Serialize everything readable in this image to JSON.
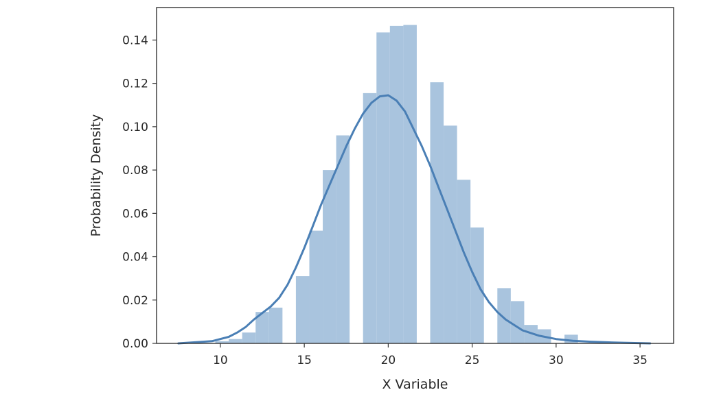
{
  "chart_data": {
    "type": "bar",
    "xlabel": "X Variable",
    "ylabel": "Probability Density",
    "xlim": [
      6.2,
      37.0
    ],
    "ylim": [
      0,
      0.155
    ],
    "xticks": [
      10,
      15,
      20,
      25,
      30,
      35
    ],
    "yticks": [
      0.0,
      0.02,
      0.04,
      0.06,
      0.08,
      0.1,
      0.12,
      0.14
    ],
    "xtick_labels": [
      "10",
      "15",
      "20",
      "25",
      "30",
      "35"
    ],
    "ytick_labels": [
      "0.00",
      "0.02",
      "0.04",
      "0.06",
      "0.08",
      "0.10",
      "0.12",
      "0.14"
    ],
    "grid": false,
    "bar_color": "#a9c4de",
    "kde_color": "#4a7fb5",
    "histogram": {
      "bin_edges": [
        7.3,
        8.1,
        8.9,
        9.7,
        10.5,
        11.3,
        12.1,
        12.9,
        13.7,
        14.5,
        15.3,
        16.1,
        16.9,
        17.7,
        18.5,
        19.3,
        20.1,
        20.9,
        21.7,
        22.5,
        23.3,
        24.1,
        24.9,
        25.7,
        26.5,
        27.3,
        28.1,
        28.9,
        29.7,
        30.5,
        31.3,
        32.1,
        32.9,
        33.7,
        34.5,
        35.3
      ],
      "densities": [
        0.0,
        0.0,
        0.0,
        0.001,
        0.002,
        0.005,
        0.0145,
        0.0165,
        0.0,
        0.031,
        0.052,
        0.08,
        0.096,
        0.0,
        0.1155,
        0.1435,
        0.1465,
        0.147,
        0.0,
        0.1205,
        0.1005,
        0.0755,
        0.0535,
        0.0,
        0.0255,
        0.0195,
        0.0085,
        0.0065,
        0.0,
        0.004,
        0.0,
        0.0,
        0.0,
        0.0,
        0.0
      ]
    },
    "kde": {
      "x": [
        7.5,
        8.5,
        9.5,
        10.5,
        11.0,
        11.5,
        12.0,
        12.5,
        13.0,
        13.5,
        14.0,
        14.5,
        15.0,
        15.5,
        16.0,
        16.5,
        17.0,
        17.5,
        18.0,
        18.5,
        19.0,
        19.5,
        20.0,
        20.5,
        21.0,
        21.5,
        22.0,
        22.5,
        23.0,
        23.5,
        24.0,
        24.5,
        25.0,
        25.5,
        26.0,
        26.5,
        27.0,
        27.5,
        28.0,
        29.0,
        30.0,
        31.0,
        32.0,
        33.0,
        34.0,
        35.6
      ],
      "y": [
        0.0,
        0.0005,
        0.001,
        0.003,
        0.005,
        0.0075,
        0.011,
        0.014,
        0.017,
        0.021,
        0.027,
        0.035,
        0.044,
        0.054,
        0.064,
        0.073,
        0.082,
        0.091,
        0.099,
        0.106,
        0.111,
        0.114,
        0.1145,
        0.112,
        0.107,
        0.099,
        0.091,
        0.082,
        0.072,
        0.062,
        0.052,
        0.042,
        0.033,
        0.025,
        0.019,
        0.0145,
        0.011,
        0.0085,
        0.006,
        0.0035,
        0.002,
        0.0012,
        0.0008,
        0.0005,
        0.0003,
        0.0
      ]
    }
  }
}
